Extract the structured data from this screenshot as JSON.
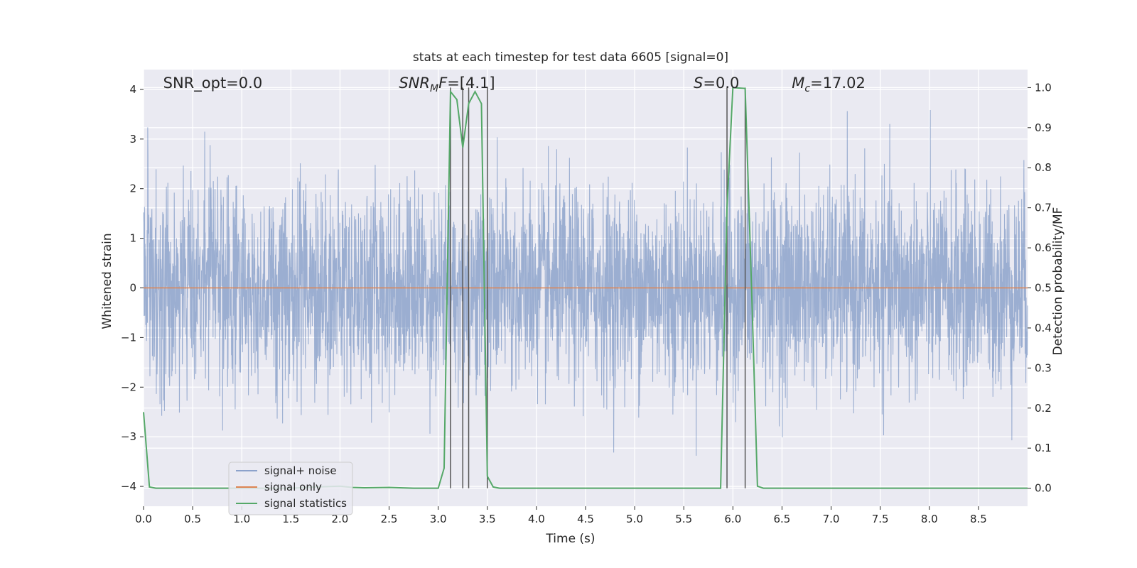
{
  "chart_data": {
    "type": "line",
    "title": "stats at each timestep for test data 6605 [signal=0]",
    "xlabel": "Time (s)",
    "ylabel": "Whitened strain",
    "y2label": "Detection probability/MF",
    "xlim": [
      0.0,
      9.0
    ],
    "ylim": [
      -4.4,
      4.4
    ],
    "y2lim": [
      -0.045,
      1.045
    ],
    "x_ticks": [
      0.0,
      0.5,
      1.0,
      1.5,
      2.0,
      2.5,
      3.0,
      3.5,
      4.0,
      4.5,
      5.0,
      5.5,
      6.0,
      6.5,
      7.0,
      7.5,
      8.0,
      8.5
    ],
    "x_tick_labels": [
      "0.0",
      "0.5",
      "1.0",
      "1.5",
      "2.0",
      "2.5",
      "3.0",
      "3.5",
      "4.0",
      "4.5",
      "5.0",
      "5.5",
      "6.0",
      "6.5",
      "7.0",
      "7.5",
      "8.0",
      "8.5"
    ],
    "y_ticks": [
      -4,
      -3,
      -2,
      -1,
      0,
      1,
      2,
      3,
      4
    ],
    "y_tick_labels": [
      "−4",
      "−3",
      "−2",
      "−1",
      "0",
      "1",
      "2",
      "3",
      "4"
    ],
    "y2_ticks": [
      0.0,
      0.1,
      0.2,
      0.3,
      0.4,
      0.5,
      0.6,
      0.7,
      0.8,
      0.9,
      1.0
    ],
    "y2_tick_labels": [
      "0.0",
      "0.1",
      "0.2",
      "0.3",
      "0.4",
      "0.5",
      "0.6",
      "0.7",
      "0.8",
      "0.9",
      "1.0"
    ],
    "grid": true,
    "legend_position": "lower-left",
    "annotations": [
      {
        "id": "snr-opt",
        "text": "SNR_opt=0.0",
        "x": 0.2
      },
      {
        "id": "snr-mf",
        "text": "SNR",
        "sub": "M",
        "tail": "F=[4.1]",
        "x": 2.6,
        "italic_prefix": true
      },
      {
        "id": "s-val",
        "text": "S",
        "tail": "=0.0",
        "x": 5.6,
        "italic_prefix": true
      },
      {
        "id": "mc-val",
        "text": "M",
        "sub": "c",
        "tail": "=17.02",
        "x": 6.6,
        "italic_prefix": true
      }
    ],
    "series": [
      {
        "name": "signal+ noise",
        "axis": "left",
        "color": "#4c72b0",
        "opacity": 0.5,
        "kind": "noise",
        "n_samples": 3600,
        "sigma": 1.0,
        "range": [
          -3.8,
          4.0
        ]
      },
      {
        "name": "signal only",
        "axis": "left",
        "color": "#dd8452",
        "x": [
          0.0,
          9.0
        ],
        "values": [
          0.0,
          0.0
        ]
      },
      {
        "name": "signal statistics",
        "axis": "right",
        "color": "#55a868",
        "x": [
          0.0,
          0.06,
          0.125,
          0.3,
          0.6,
          1.0,
          1.5,
          1.75,
          2.0,
          2.125,
          2.25,
          2.5,
          2.75,
          3.0,
          3.06,
          3.125,
          3.19,
          3.25,
          3.31,
          3.375,
          3.44,
          3.5,
          3.56,
          3.625,
          3.75,
          4.0,
          5.0,
          5.5,
          5.875,
          5.94,
          6.0,
          6.06,
          6.125,
          6.19,
          6.25,
          6.31,
          6.5,
          7.0,
          8.0,
          9.0
        ],
        "values": [
          0.19,
          0.003,
          0.0,
          0.0,
          0.0,
          0.0,
          0.0,
          0.003,
          0.005,
          0.002,
          0.001,
          0.002,
          0.0,
          0.0,
          0.05,
          0.99,
          0.97,
          0.85,
          0.96,
          0.99,
          0.96,
          0.03,
          0.003,
          0.0,
          0.0,
          0.0,
          0.0,
          0.0,
          0.0,
          0.7,
          1.0,
          0.999,
          0.998,
          0.5,
          0.005,
          0.0,
          0.0,
          0.0,
          0.0,
          0.0
        ]
      }
    ],
    "vertical_lines": {
      "color": "#555555",
      "y_from": 0.0,
      "y_to": 1.0,
      "x": [
        3.125,
        3.25,
        3.31,
        3.5,
        5.94,
        6.125
      ]
    }
  }
}
